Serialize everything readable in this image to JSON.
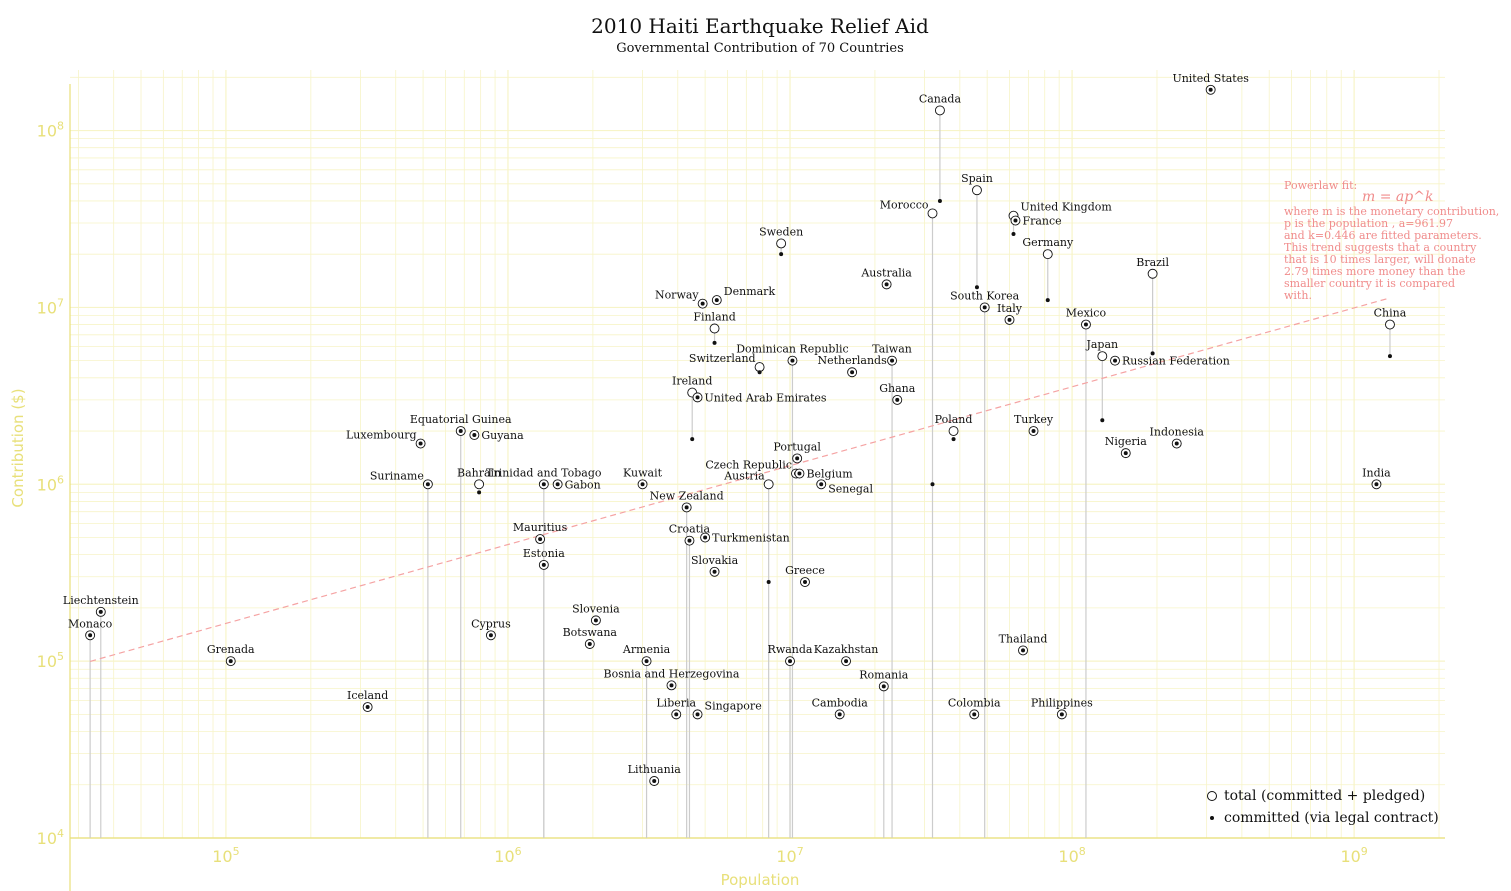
{
  "chart_data": {
    "type": "scatter",
    "title": "2010 Haiti Earthquake Relief Aid",
    "subtitle": "Governmental Contribution of 70 Countries",
    "xlabel": "Population",
    "ylabel": "Contribution ($)",
    "xscale": "log",
    "yscale": "log",
    "xlim": [
      28000,
      2100000000
    ],
    "ylim": [
      10000,
      220000000
    ],
    "x_ticks": [
      {
        "value": 100000,
        "base": "10",
        "exp": "5"
      },
      {
        "value": 1000000,
        "base": "10",
        "exp": "6"
      },
      {
        "value": 10000000,
        "base": "10",
        "exp": "7"
      },
      {
        "value": 100000000,
        "base": "10",
        "exp": "8"
      },
      {
        "value": 1000000000,
        "base": "10",
        "exp": "9"
      }
    ],
    "y_ticks": [
      {
        "value": 10000,
        "base": "10",
        "exp": "4"
      },
      {
        "value": 100000,
        "base": "10",
        "exp": "5"
      },
      {
        "value": 1000000,
        "base": "10",
        "exp": "6"
      },
      {
        "value": 10000000,
        "base": "10",
        "exp": "7"
      },
      {
        "value": 100000000,
        "base": "10",
        "exp": "8"
      }
    ],
    "grid": true,
    "legend": {
      "position": "bottom-right",
      "entries": [
        {
          "marker": "open-circle",
          "label": "total (committed + pledged)"
        },
        {
          "marker": "dot",
          "label": "committed (via legal contract)"
        }
      ]
    },
    "colors": {
      "axis": "#e8e07a",
      "grid": "#f7f4c8",
      "stem": "#cccccc",
      "fit": "#f5a3a3",
      "annotation": "#f08c8c",
      "marker": "#111111"
    },
    "fit": {
      "label": "Powerlaw fit:",
      "formula": "m = ap^k",
      "a": 961.97,
      "k": 0.446,
      "x_range": [
        33000,
        1340000000
      ],
      "lines": [
        "where m is the monetary contribution,",
        "p is the population , a=961.97",
        "and k=0.446 are fitted parameters.",
        "This trend suggests that a country",
        "that is 10 times larger, will donate",
        "2.79 times more money than the",
        "smaller country it is compared",
        "with."
      ]
    },
    "series": [
      {
        "name": "total (committed + pledged)",
        "marker": "open-circle"
      },
      {
        "name": "committed (via legal contract)",
        "marker": "dot"
      }
    ],
    "points": [
      {
        "country": "United States",
        "population": 310000000,
        "total": 170000000,
        "committed": 170000000,
        "label_side": "top"
      },
      {
        "country": "Canada",
        "population": 34000000,
        "total": 130000000,
        "committed": 40000000,
        "label_side": "top"
      },
      {
        "country": "Spain",
        "population": 46000000,
        "total": 46000000,
        "committed": 13000000,
        "label_side": "top"
      },
      {
        "country": "Morocco",
        "population": 32000000,
        "total": 34000000,
        "committed": 1000000,
        "label_side": "left-up"
      },
      {
        "country": "United Kingdom",
        "population": 62000000,
        "total": 33000000,
        "committed": 26000000,
        "label_side": "right-up"
      },
      {
        "country": "France",
        "population": 63000000,
        "total": 31000000,
        "committed": 31000000,
        "label_side": "right"
      },
      {
        "country": "Germany",
        "population": 82000000,
        "total": 20000000,
        "committed": 11000000,
        "label_side": "top"
      },
      {
        "country": "Brazil",
        "population": 193000000,
        "total": 15500000,
        "committed": 5500000,
        "label_side": "top"
      },
      {
        "country": "Sweden",
        "population": 9300000,
        "total": 23000000,
        "committed": 20000000,
        "label_side": "top"
      },
      {
        "country": "Australia",
        "population": 22000000,
        "total": 13500000,
        "committed": 13500000,
        "label_side": "top"
      },
      {
        "country": "Norway",
        "population": 4900000,
        "total": 10500000,
        "committed": 10500000,
        "label_side": "left-up"
      },
      {
        "country": "Denmark",
        "population": 5500000,
        "total": 11000000,
        "committed": 11000000,
        "label_side": "right-up"
      },
      {
        "country": "South Korea",
        "population": 49000000,
        "total": 10000000,
        "committed": 10000000,
        "label_side": "top"
      },
      {
        "country": "Italy",
        "population": 60000000,
        "total": 8500000,
        "committed": 8500000,
        "label_side": "top"
      },
      {
        "country": "Mexico",
        "population": 112000000,
        "total": 8000000,
        "committed": 8000000,
        "label_side": "top"
      },
      {
        "country": "China",
        "population": 1340000000,
        "total": 8000000,
        "committed": 5300000,
        "label_side": "top"
      },
      {
        "country": "Finland",
        "population": 5400000,
        "total": 7600000,
        "committed": 6300000,
        "label_side": "top"
      },
      {
        "country": "Dominican Republic",
        "population": 10200000,
        "total": 5000000,
        "committed": 5000000,
        "label_side": "top"
      },
      {
        "country": "Switzerland",
        "population": 7800000,
        "total": 4600000,
        "committed": 4300000,
        "label_side": "left-up"
      },
      {
        "country": "Taiwan",
        "population": 23000000,
        "total": 5000000,
        "committed": 5000000,
        "label_side": "top"
      },
      {
        "country": "Netherlands",
        "population": 16600000,
        "total": 4300000,
        "committed": 4300000,
        "label_side": "top"
      },
      {
        "country": "Japan",
        "population": 128000000,
        "total": 5300000,
        "committed": 2300000,
        "label_side": "top"
      },
      {
        "country": "Russian Federation",
        "population": 142000000,
        "total": 5000000,
        "committed": 5000000,
        "label_side": "right"
      },
      {
        "country": "Ireland",
        "population": 4500000,
        "total": 3300000,
        "committed": 1800000,
        "label_side": "top"
      },
      {
        "country": "United Arab Emirates",
        "population": 4700000,
        "total": 3100000,
        "committed": 3100000,
        "label_side": "right"
      },
      {
        "country": "Ghana",
        "population": 24000000,
        "total": 3000000,
        "committed": 3000000,
        "label_side": "top"
      },
      {
        "country": "Equatorial Guinea",
        "population": 680000,
        "total": 2000000,
        "committed": 2000000,
        "label_side": "top"
      },
      {
        "country": "Guyana",
        "population": 760000,
        "total": 1900000,
        "committed": 1900000,
        "label_side": "right"
      },
      {
        "country": "Luxembourg",
        "population": 490000,
        "total": 1700000,
        "committed": 1700000,
        "label_side": "left-up"
      },
      {
        "country": "Poland",
        "population": 38000000,
        "total": 2000000,
        "committed": 1800000,
        "label_side": "top"
      },
      {
        "country": "Turkey",
        "population": 73000000,
        "total": 2000000,
        "committed": 2000000,
        "label_side": "top"
      },
      {
        "country": "Nigeria",
        "population": 155000000,
        "total": 1500000,
        "committed": 1500000,
        "label_side": "top"
      },
      {
        "country": "Indonesia",
        "population": 235000000,
        "total": 1700000,
        "committed": 1700000,
        "label_side": "top"
      },
      {
        "country": "Portugal",
        "population": 10600000,
        "total": 1400000,
        "committed": 1400000,
        "label_side": "top"
      },
      {
        "country": "Czech Republic",
        "population": 10500000,
        "total": 1150000,
        "committed": 1150000,
        "label_side": "left-up"
      },
      {
        "country": "Belgium",
        "population": 10800000,
        "total": 1150000,
        "committed": 1150000,
        "label_side": "right"
      },
      {
        "country": "Senegal",
        "population": 12900000,
        "total": 1000000,
        "committed": 1000000,
        "label_side": "right-down"
      },
      {
        "country": "Austria",
        "population": 8400000,
        "total": 1000000,
        "committed": 280000,
        "label_side": "left-up"
      },
      {
        "country": "Suriname",
        "population": 520000,
        "total": 1000000,
        "committed": 1000000,
        "label_side": "left-up"
      },
      {
        "country": "Bahrain",
        "population": 790000,
        "total": 1000000,
        "committed": 900000,
        "label_side": "top"
      },
      {
        "country": "Trinidad and Tobago",
        "population": 1340000,
        "total": 1000000,
        "committed": 1000000,
        "label_side": "top"
      },
      {
        "country": "Gabon",
        "population": 1500000,
        "total": 1000000,
        "committed": 1000000,
        "label_side": "right"
      },
      {
        "country": "Kuwait",
        "population": 3000000,
        "total": 1000000,
        "committed": 1000000,
        "label_side": "top"
      },
      {
        "country": "India",
        "population": 1200000000,
        "total": 1000000,
        "committed": 1000000,
        "label_side": "top"
      },
      {
        "country": "New Zealand",
        "population": 4300000,
        "total": 740000,
        "committed": 740000,
        "label_side": "top"
      },
      {
        "country": "Mauritius",
        "population": 1300000,
        "total": 490000,
        "committed": 490000,
        "label_side": "top"
      },
      {
        "country": "Croatia",
        "population": 4400000,
        "total": 480000,
        "committed": 480000,
        "label_side": "top"
      },
      {
        "country": "Turkmenistan",
        "population": 5000000,
        "total": 500000,
        "committed": 500000,
        "label_side": "right"
      },
      {
        "country": "Estonia",
        "population": 1340000,
        "total": 350000,
        "committed": 350000,
        "label_side": "top"
      },
      {
        "country": "Slovakia",
        "population": 5400000,
        "total": 320000,
        "committed": 320000,
        "label_side": "top"
      },
      {
        "country": "Greece",
        "population": 11300000,
        "total": 280000,
        "committed": 280000,
        "label_side": "top"
      },
      {
        "country": "Liechtenstein",
        "population": 36000,
        "total": 190000,
        "committed": 190000,
        "label_side": "top"
      },
      {
        "country": "Monaco",
        "population": 33000,
        "total": 140000,
        "committed": 140000,
        "label_side": "top"
      },
      {
        "country": "Slovenia",
        "population": 2050000,
        "total": 170000,
        "committed": 170000,
        "label_side": "top"
      },
      {
        "country": "Cyprus",
        "population": 870000,
        "total": 140000,
        "committed": 140000,
        "label_side": "top"
      },
      {
        "country": "Botswana",
        "population": 1950000,
        "total": 125000,
        "committed": 125000,
        "label_side": "top"
      },
      {
        "country": "Grenada",
        "population": 104000,
        "total": 100000,
        "committed": 100000,
        "label_side": "top"
      },
      {
        "country": "Armenia",
        "population": 3100000,
        "total": 100000,
        "committed": 100000,
        "label_side": "top"
      },
      {
        "country": "Rwanda",
        "population": 10000000,
        "total": 100000,
        "committed": 100000,
        "label_side": "top"
      },
      {
        "country": "Kazakhstan",
        "population": 15800000,
        "total": 100000,
        "committed": 100000,
        "label_side": "top"
      },
      {
        "country": "Thailand",
        "population": 67000000,
        "total": 115000,
        "committed": 115000,
        "label_side": "top"
      },
      {
        "country": "Bosnia and Herzegovina",
        "population": 3800000,
        "total": 73000,
        "committed": 73000,
        "label_side": "top"
      },
      {
        "country": "Romania",
        "population": 21500000,
        "total": 72000,
        "committed": 72000,
        "label_side": "top"
      },
      {
        "country": "Iceland",
        "population": 318000,
        "total": 55000,
        "committed": 55000,
        "label_side": "top"
      },
      {
        "country": "Liberia",
        "population": 3950000,
        "total": 50000,
        "committed": 50000,
        "label_side": "top"
      },
      {
        "country": "Singapore",
        "population": 4700000,
        "total": 50000,
        "committed": 50000,
        "label_side": "right-up"
      },
      {
        "country": "Cambodia",
        "population": 15000000,
        "total": 50000,
        "committed": 50000,
        "label_side": "top"
      },
      {
        "country": "Colombia",
        "population": 45000000,
        "total": 50000,
        "committed": 50000,
        "label_side": "top"
      },
      {
        "country": "Philippines",
        "population": 92000000,
        "total": 50000,
        "committed": 50000,
        "label_side": "top"
      },
      {
        "country": "Lithuania",
        "population": 3300000,
        "total": 21000,
        "committed": 21000,
        "label_side": "top"
      }
    ]
  }
}
